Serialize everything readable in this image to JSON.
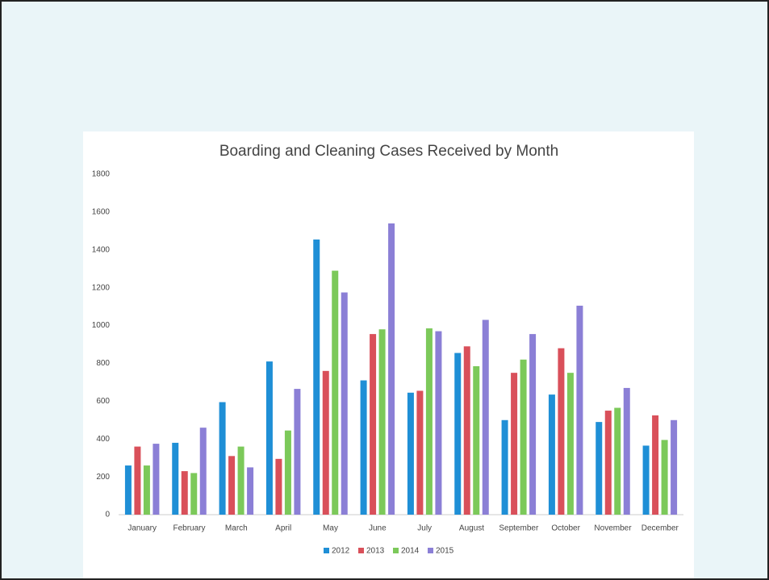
{
  "chart_data": {
    "type": "bar",
    "title": "Boarding and Cleaning Cases Received by Month",
    "categories": [
      "January",
      "February",
      "March",
      "April",
      "May",
      "June",
      "July",
      "August",
      "September",
      "October",
      "November",
      "December"
    ],
    "series": [
      {
        "name": "2012",
        "color": "#1f8fd6",
        "values": [
          260,
          380,
          595,
          810,
          1455,
          710,
          645,
          855,
          500,
          635,
          490,
          365
        ]
      },
      {
        "name": "2013",
        "color": "#d9505a",
        "values": [
          360,
          230,
          310,
          295,
          760,
          955,
          655,
          890,
          750,
          880,
          550,
          525
        ]
      },
      {
        "name": "2014",
        "color": "#7cc95a",
        "values": [
          260,
          220,
          360,
          445,
          1290,
          980,
          985,
          785,
          820,
          750,
          565,
          395
        ]
      },
      {
        "name": "2015",
        "color": "#8b7fd6",
        "values": [
          375,
          460,
          250,
          665,
          1175,
          1540,
          970,
          1030,
          955,
          1105,
          670,
          500
        ]
      }
    ],
    "ylim": [
      0,
      1800
    ],
    "yticks": [
      0,
      200,
      400,
      600,
      800,
      1000,
      1200,
      1400,
      1600,
      1800
    ],
    "grid": false,
    "legend": "bottom"
  }
}
